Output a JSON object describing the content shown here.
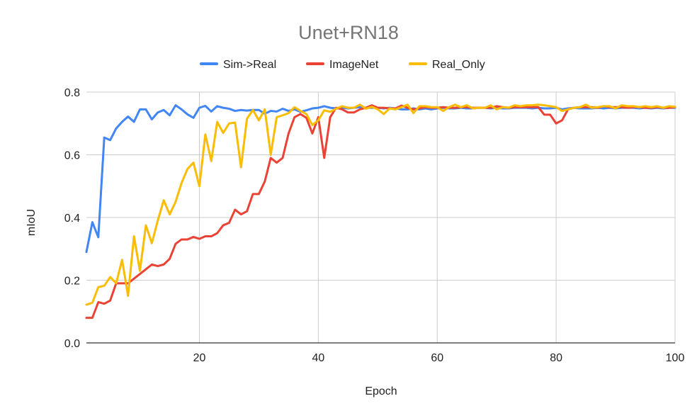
{
  "chart_data": {
    "type": "line",
    "title": "Unet+RN18",
    "xlabel": "Epoch",
    "ylabel": "mIoU",
    "xlim": [
      1,
      100
    ],
    "ylim": [
      0,
      0.8
    ],
    "xticks": [
      20,
      40,
      60,
      80,
      100
    ],
    "yticks": [
      0.0,
      0.2,
      0.4,
      0.6,
      0.8
    ],
    "xtick_labels": [
      "20",
      "40",
      "60",
      "80",
      "100"
    ],
    "ytick_labels": [
      "0.0",
      "0.2",
      "0.4",
      "0.6",
      "0.8"
    ],
    "grid": true,
    "legend": "top-center",
    "series": [
      {
        "name": "Sim->Real",
        "color": "#4285f4",
        "values": [
          0.29,
          0.385,
          0.337,
          0.655,
          0.647,
          0.684,
          0.705,
          0.722,
          0.705,
          0.745,
          0.745,
          0.713,
          0.735,
          0.743,
          0.726,
          0.758,
          0.745,
          0.729,
          0.718,
          0.75,
          0.756,
          0.738,
          0.755,
          0.75,
          0.747,
          0.74,
          0.743,
          0.741,
          0.743,
          0.743,
          0.731,
          0.74,
          0.738,
          0.747,
          0.74,
          0.745,
          0.737,
          0.742,
          0.748,
          0.75,
          0.755,
          0.75,
          0.748,
          0.75,
          0.748,
          0.75,
          0.752,
          0.75,
          0.75,
          0.75,
          0.748,
          0.75,
          0.748,
          0.745,
          0.745,
          0.748,
          0.745,
          0.748,
          0.745,
          0.748,
          0.75,
          0.748,
          0.748,
          0.75,
          0.748,
          0.748,
          0.75,
          0.75,
          0.748,
          0.75,
          0.748,
          0.748,
          0.75,
          0.75,
          0.75,
          0.748,
          0.75,
          0.748,
          0.748,
          0.75,
          0.745,
          0.748,
          0.75,
          0.748,
          0.748,
          0.748,
          0.75,
          0.748,
          0.75,
          0.748,
          0.75,
          0.75,
          0.75,
          0.748,
          0.75,
          0.748,
          0.75,
          0.748,
          0.75,
          0.75
        ]
      },
      {
        "name": "ImageNet",
        "color": "#ea4335",
        "values": [
          0.08,
          0.08,
          0.13,
          0.125,
          0.135,
          0.19,
          0.19,
          0.19,
          0.205,
          0.22,
          0.235,
          0.25,
          0.245,
          0.25,
          0.268,
          0.316,
          0.33,
          0.33,
          0.338,
          0.332,
          0.34,
          0.34,
          0.35,
          0.375,
          0.383,
          0.425,
          0.41,
          0.42,
          0.475,
          0.475,
          0.515,
          0.59,
          0.575,
          0.59,
          0.668,
          0.72,
          0.73,
          0.718,
          0.668,
          0.72,
          0.59,
          0.72,
          0.75,
          0.745,
          0.735,
          0.735,
          0.745,
          0.75,
          0.758,
          0.75,
          0.75,
          0.748,
          0.748,
          0.757,
          0.75,
          0.745,
          0.748,
          0.752,
          0.75,
          0.75,
          0.752,
          0.75,
          0.75,
          0.752,
          0.752,
          0.75,
          0.75,
          0.75,
          0.75,
          0.755,
          0.752,
          0.75,
          0.752,
          0.752,
          0.752,
          0.752,
          0.752,
          0.728,
          0.728,
          0.7,
          0.71,
          0.745,
          0.75,
          0.752,
          0.752,
          0.752,
          0.75,
          0.755,
          0.752,
          0.752,
          0.752,
          0.75,
          0.752,
          0.752,
          0.75,
          0.75,
          0.752,
          0.75,
          0.75,
          0.752
        ]
      },
      {
        "name": "Real_Only",
        "color": "#fbbc04",
        "values": [
          0.122,
          0.128,
          0.178,
          0.182,
          0.21,
          0.19,
          0.265,
          0.15,
          0.34,
          0.23,
          0.375,
          0.318,
          0.39,
          0.455,
          0.41,
          0.45,
          0.51,
          0.555,
          0.575,
          0.5,
          0.665,
          0.58,
          0.705,
          0.67,
          0.7,
          0.703,
          0.56,
          0.715,
          0.743,
          0.71,
          0.745,
          0.6,
          0.72,
          0.726,
          0.733,
          0.752,
          0.74,
          0.73,
          0.695,
          0.71,
          0.742,
          0.737,
          0.747,
          0.755,
          0.75,
          0.75,
          0.76,
          0.747,
          0.753,
          0.745,
          0.73,
          0.748,
          0.745,
          0.752,
          0.76,
          0.733,
          0.755,
          0.755,
          0.752,
          0.752,
          0.74,
          0.752,
          0.76,
          0.752,
          0.758,
          0.748,
          0.75,
          0.75,
          0.758,
          0.745,
          0.752,
          0.75,
          0.758,
          0.755,
          0.758,
          0.758,
          0.76,
          0.758,
          0.755,
          0.752,
          0.74,
          0.745,
          0.75,
          0.752,
          0.76,
          0.75,
          0.752,
          0.755,
          0.755,
          0.748,
          0.758,
          0.755,
          0.755,
          0.752,
          0.755,
          0.752,
          0.755,
          0.75,
          0.755,
          0.753
        ]
      }
    ]
  }
}
